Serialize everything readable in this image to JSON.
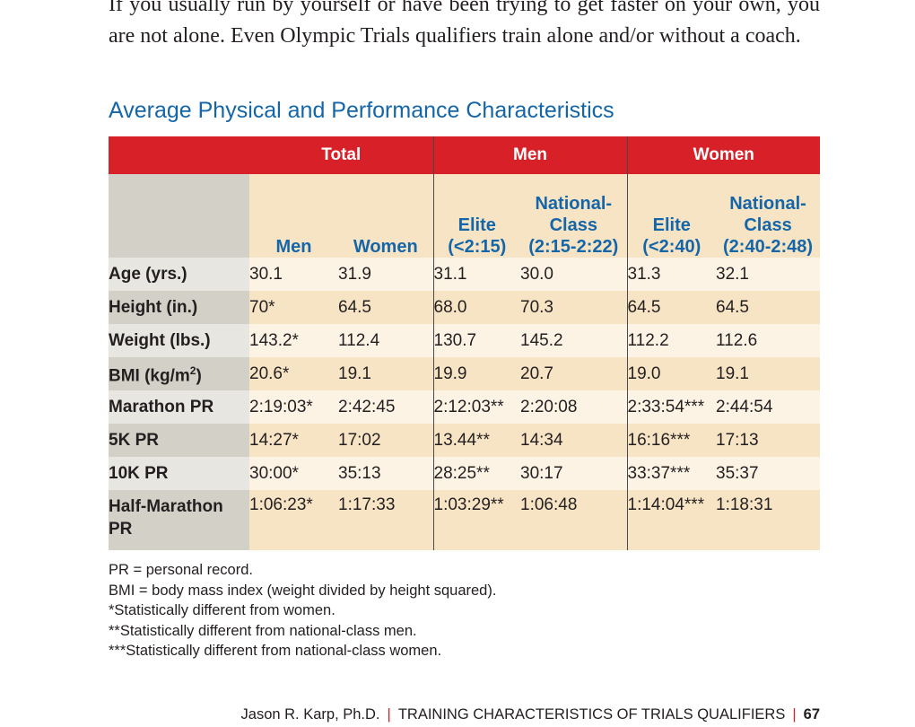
{
  "intro": {
    "text": "If you usually run by yourself or have been trying to get faster on your own, you are not alone. Even Olympic Trials qualifiers train alone and/or without a coach."
  },
  "table": {
    "title": "Average Physical and Performance Characteristics",
    "groups": [
      "Total",
      "Men",
      "Women"
    ],
    "subheaders": {
      "total_men": "Men",
      "total_women": "Women",
      "men_elite": [
        "Elite",
        "(<2:15)"
      ],
      "men_national": [
        "National-",
        "Class",
        "(2:15-2:22)"
      ],
      "women_elite": [
        "Elite",
        "(<2:40)"
      ],
      "women_national": [
        "National-",
        "Class",
        "(2:40-2:48)"
      ]
    },
    "rows": [
      {
        "label": "Age (yrs.)",
        "values": [
          "30.1",
          "31.9",
          "31.1",
          "30.0",
          "31.3",
          "32.1"
        ]
      },
      {
        "label": "Height (in.)",
        "values": [
          "70*",
          "64.5",
          "68.0",
          "70.3",
          "64.5",
          "64.5"
        ]
      },
      {
        "label": "Weight (lbs.)",
        "values": [
          "143.2*",
          "112.4",
          "130.7",
          "145.2",
          "112.2",
          "112.6"
        ]
      },
      {
        "label_base": "BMI (kg/m",
        "label_sup": "2",
        "label_tail": ")",
        "values": [
          "20.6*",
          "19.1",
          "19.9",
          "20.7",
          "19.0",
          "19.1"
        ]
      },
      {
        "label": "Marathon PR",
        "values": [
          "2:19:03*",
          "2:42:45",
          "2:12:03**",
          "2:20:08",
          "2:33:54***",
          "2:44:54"
        ]
      },
      {
        "label": "5K PR",
        "values": [
          "14:27*",
          "17:02",
          "13.44**",
          "14:34",
          "16:16***",
          "17:13"
        ]
      },
      {
        "label": "10K PR",
        "values": [
          "30:00*",
          "35:13",
          "28:25**",
          "30:17",
          "33:37***",
          "35:37"
        ]
      },
      {
        "label": "Half-Marathon PR",
        "values": [
          "1:06:23*",
          "1:17:33",
          "1:03:29**",
          "1:06:48",
          "1:14:04***",
          "1:18:31"
        ]
      }
    ]
  },
  "notes": [
    "PR = personal record.",
    "BMI = body mass index (weight divided by height squared).",
    "*Statistically different from women.",
    "**Statistically different from national-class men.",
    "***Statistically different from national-class women."
  ],
  "footer": {
    "author": "Jason R. Karp, Ph.D.",
    "separator": "|",
    "chapter": "TRAINING CHARACTERISTICS OF TRIALS QUALIFIERS",
    "page": "67"
  }
}
